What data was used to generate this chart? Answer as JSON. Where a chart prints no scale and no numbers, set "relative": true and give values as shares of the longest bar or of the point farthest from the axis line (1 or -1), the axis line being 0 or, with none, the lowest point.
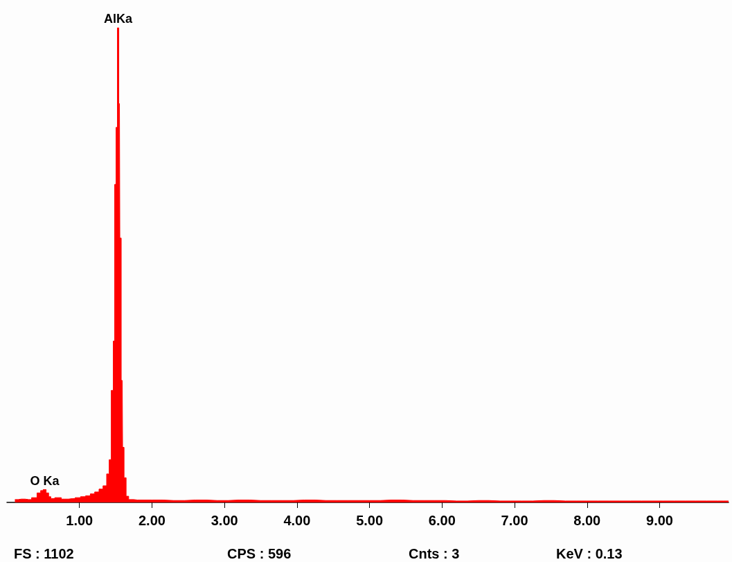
{
  "chart_data": {
    "type": "area",
    "relative": true,
    "color": "#ff0000",
    "x": [
      0.11,
      0.2,
      0.3,
      0.38,
      0.45,
      0.48,
      0.52,
      0.56,
      0.59,
      0.62,
      0.7,
      0.8,
      0.9,
      0.98,
      1.05,
      1.12,
      1.18,
      1.24,
      1.3,
      1.35,
      1.4,
      1.42,
      1.457,
      1.476,
      1.495,
      1.514,
      1.533,
      1.552,
      1.562,
      1.59,
      1.6,
      1.63,
      1.657,
      1.7,
      1.8,
      2.0,
      2.3,
      2.6,
      2.9,
      3.2,
      3.5,
      3.8,
      4.1,
      4.4,
      4.7,
      5.0,
      5.3,
      5.6,
      5.9,
      6.2,
      6.5,
      6.8,
      7.1,
      7.4,
      7.7,
      8.0,
      8.3,
      8.6,
      8.9,
      9.2,
      9.5,
      9.8,
      9.95
    ],
    "values": [
      0.006,
      0.007,
      0.006,
      0.01,
      0.02,
      0.025,
      0.027,
      0.02,
      0.012,
      0.008,
      0.01,
      0.007,
      0.008,
      0.01,
      0.012,
      0.014,
      0.018,
      0.022,
      0.028,
      0.035,
      0.06,
      0.09,
      0.236,
      0.34,
      0.67,
      0.79,
      1.0,
      0.84,
      0.557,
      0.257,
      0.116,
      0.052,
      0.013,
      0.006,
      0.005,
      0.005,
      0.004,
      0.005,
      0.004,
      0.005,
      0.004,
      0.004,
      0.005,
      0.004,
      0.004,
      0.004,
      0.005,
      0.004,
      0.004,
      0.003,
      0.004,
      0.003,
      0.003,
      0.004,
      0.003,
      0.003,
      0.003,
      0.003,
      0.003,
      0.003,
      0.003,
      0.003,
      0.003
    ],
    "xlim": [
      0,
      9.95
    ],
    "xticks": [
      {
        "value": 1,
        "label": "1.00"
      },
      {
        "value": 2,
        "label": "2.00"
      },
      {
        "value": 3,
        "label": "3.00"
      },
      {
        "value": 4,
        "label": "4.00"
      },
      {
        "value": 5,
        "label": "5.00"
      },
      {
        "value": 6,
        "label": "6.00"
      },
      {
        "value": 7,
        "label": "7.00"
      },
      {
        "value": 8,
        "label": "8.00"
      },
      {
        "value": 9,
        "label": "9.00"
      }
    ],
    "grid": false,
    "marker": "none",
    "annotations": [
      {
        "text": "AlKa",
        "x": 1.533,
        "y": 1.0
      },
      {
        "text": "O Ka",
        "x": 0.52,
        "y": 0.027
      },
      "FS : 1102",
      "CPS : 596",
      "Cnts : 3",
      "KeV : 0.13"
    ]
  }
}
